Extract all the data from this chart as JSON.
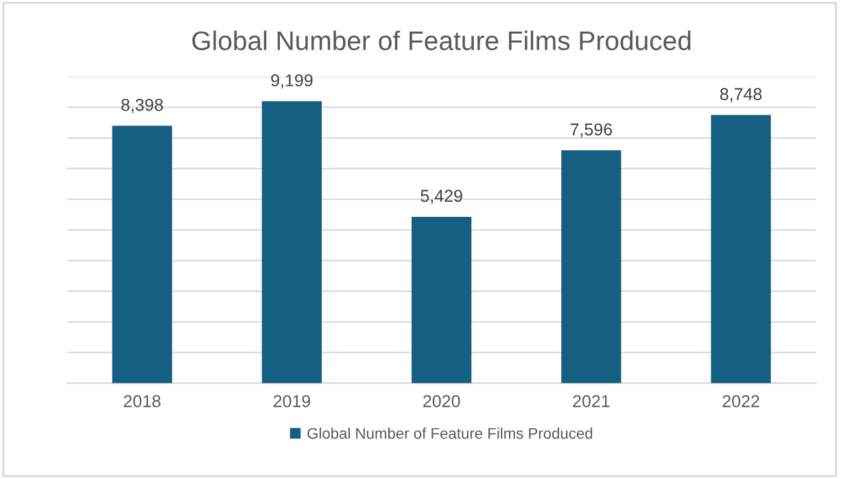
{
  "chart_data": {
    "type": "bar",
    "title": "Global Number of Feature Films Produced",
    "categories": [
      "2018",
      "2019",
      "2020",
      "2021",
      "2022"
    ],
    "series": [
      {
        "name": "Global Number of Feature Films Produced",
        "color": "#156082",
        "values": [
          8398,
          9199,
          5429,
          7596,
          8748
        ],
        "value_labels": [
          "8,398",
          "9,199",
          "5,429",
          "7,596",
          "8,748"
        ]
      }
    ],
    "tick_labels": "x",
    "grid": "y",
    "legend": "bottom"
  }
}
